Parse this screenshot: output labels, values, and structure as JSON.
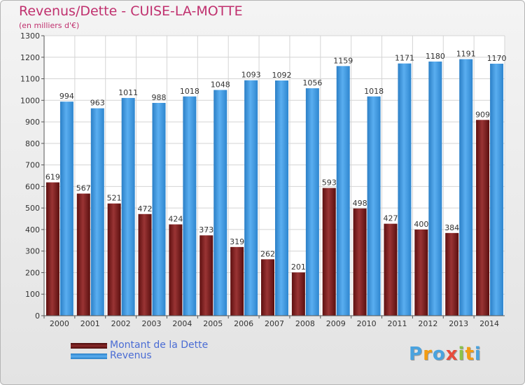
{
  "header": {
    "title": "Revenus/Dette - CUISE-LA-MOTTE",
    "subtitle": "(en milliers d'€)"
  },
  "chart_data": {
    "type": "bar",
    "title": "Revenus/Dette - CUISE-LA-MOTTE",
    "subtitle": "(en milliers d'€)",
    "categories": [
      "2000",
      "2001",
      "2002",
      "2003",
      "2004",
      "2005",
      "2006",
      "2007",
      "2008",
      "2009",
      "2010",
      "2011",
      "2012",
      "2013",
      "2014"
    ],
    "series": [
      {
        "name": "Montant de la Dette",
        "color": "#7a1f1f",
        "values": [
          619,
          567,
          521,
          472,
          424,
          373,
          319,
          262,
          201,
          593,
          498,
          427,
          400,
          384,
          909
        ]
      },
      {
        "name": "Revenus",
        "color": "#3f95dc",
        "values": [
          994,
          963,
          1011,
          988,
          1018,
          1048,
          1093,
          1092,
          1056,
          1159,
          1018,
          1171,
          1180,
          1191,
          1170
        ]
      }
    ],
    "ylim": [
      0,
      1300
    ],
    "yticks": [
      0,
      100,
      200,
      300,
      400,
      500,
      600,
      700,
      800,
      900,
      1000,
      1100,
      1200,
      1300
    ],
    "grid": true,
    "legend_position": "bottom-left"
  },
  "legend": {
    "items": [
      {
        "label": "Montant de la Dette",
        "color": "#7a1f1f"
      },
      {
        "label": "Revenus",
        "color": "#3f95dc"
      }
    ]
  },
  "logo": {
    "letters": [
      "P",
      "r",
      "o",
      "x",
      "i",
      "t",
      "i"
    ],
    "colors": [
      "#4aa3df",
      "#f39c12",
      "#4aa3df",
      "#e74c3c",
      "#8bc34a",
      "#f39c12",
      "#4aa3df"
    ]
  }
}
